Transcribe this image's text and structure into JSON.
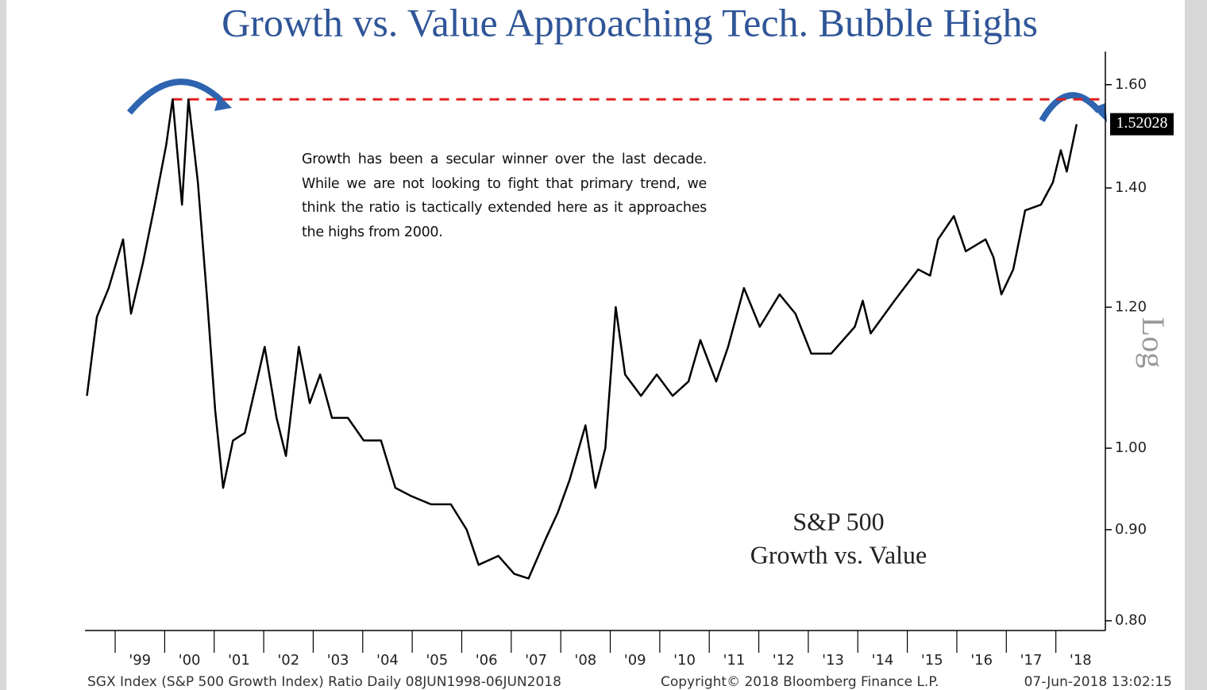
{
  "chart_data": {
    "type": "line",
    "title": "Growth vs. Value Approaching Tech. Bubble Highs",
    "annotation": "Growth has been a secular winner over the last decade. While we are not looking to fight that primary trend, we think the ratio is tactically extended here as it approaches the highs from 2000.",
    "inset_label": [
      "S&P 500",
      "Growth vs. Value"
    ],
    "y_axis_label": "Log",
    "footer": [
      "SGX Index (S&P 500 Growth Index) Ratio  Daily 08JUN1998-06JUN2018",
      "Copyright© 2018 Bloomberg Finance L.P.",
      "07-Jun-2018 13:02:15"
    ],
    "log_scale": true,
    "color": "#000000",
    "reference_line": {
      "value": 1.57,
      "color": "#e02020"
    },
    "x": [
      1998.43,
      1998.63,
      1998.87,
      1999.16,
      1999.32,
      1999.56,
      1999.8,
      2000.03,
      2000.16,
      2000.35,
      2000.48,
      2000.67,
      2000.86,
      2001.02,
      2001.18,
      2001.38,
      2001.62,
      2001.86,
      2002.02,
      2002.26,
      2002.45,
      2002.71,
      2002.93,
      2003.14,
      2003.38,
      2003.7,
      2004.02,
      2004.37,
      2004.66,
      2004.98,
      2005.38,
      2005.78,
      2006.1,
      2006.34,
      2006.74,
      2007.06,
      2007.35,
      2007.7,
      2007.94,
      2008.18,
      2008.5,
      2008.7,
      2008.9,
      2009.11,
      2009.3,
      2009.62,
      2009.94,
      2010.26,
      2010.58,
      2010.82,
      2011.14,
      2011.38,
      2011.7,
      2012.02,
      2012.42,
      2012.74,
      2013.06,
      2013.46,
      2013.94,
      2014.1,
      2014.26,
      2014.74,
      2015.22,
      2015.46,
      2015.62,
      2015.94,
      2016.18,
      2016.58,
      2016.74,
      2016.9,
      2017.14,
      2017.38,
      2017.7,
      2017.94,
      2018.1,
      2018.22,
      2018.42
    ],
    "values": [
      1.07,
      1.185,
      1.23,
      1.31,
      1.19,
      1.27,
      1.37,
      1.48,
      1.57,
      1.37,
      1.57,
      1.41,
      1.21,
      1.05,
      0.95,
      1.01,
      1.02,
      1.09,
      1.14,
      1.04,
      0.99,
      1.14,
      1.06,
      1.1,
      1.04,
      1.04,
      1.01,
      1.01,
      0.95,
      0.94,
      0.93,
      0.93,
      0.9,
      0.86,
      0.87,
      0.85,
      0.845,
      0.89,
      0.92,
      0.96,
      1.03,
      0.95,
      1.0,
      1.2,
      1.1,
      1.07,
      1.1,
      1.07,
      1.09,
      1.15,
      1.09,
      1.14,
      1.23,
      1.17,
      1.22,
      1.19,
      1.13,
      1.13,
      1.17,
      1.21,
      1.16,
      1.21,
      1.26,
      1.25,
      1.31,
      1.35,
      1.29,
      1.31,
      1.28,
      1.22,
      1.26,
      1.36,
      1.37,
      1.41,
      1.47,
      1.43,
      1.52028
    ],
    "xlim": [
      1998.39,
      2019.0
    ],
    "ylim": [
      0.79,
      1.67
    ],
    "xticks": [
      {
        "value": 1999,
        "label": "'99"
      },
      {
        "value": 2000,
        "label": "'00"
      },
      {
        "value": 2001,
        "label": "'01"
      },
      {
        "value": 2002,
        "label": "'02"
      },
      {
        "value": 2003,
        "label": "'03"
      },
      {
        "value": 2004,
        "label": "'04"
      },
      {
        "value": 2005,
        "label": "'05"
      },
      {
        "value": 2006,
        "label": "'06"
      },
      {
        "value": 2007,
        "label": "'07"
      },
      {
        "value": 2008,
        "label": "'08"
      },
      {
        "value": 2009,
        "label": "'09"
      },
      {
        "value": 2010,
        "label": "'10"
      },
      {
        "value": 2011,
        "label": "'11"
      },
      {
        "value": 2012,
        "label": "'12"
      },
      {
        "value": 2013,
        "label": "'13"
      },
      {
        "value": 2014,
        "label": "'14"
      },
      {
        "value": 2015,
        "label": "'15"
      },
      {
        "value": 2016,
        "label": "'16"
      },
      {
        "value": 2017,
        "label": "'17"
      },
      {
        "value": 2018,
        "label": "'18"
      }
    ],
    "yticks": [
      {
        "value": 0.8,
        "label": "0.80"
      },
      {
        "value": 0.9,
        "label": "0.90"
      },
      {
        "value": 1.0,
        "label": "1.00"
      },
      {
        "value": 1.2,
        "label": "1.20"
      },
      {
        "value": 1.4,
        "label": "1.40"
      },
      {
        "value": 1.6,
        "label": "1.60"
      }
    ]
  }
}
